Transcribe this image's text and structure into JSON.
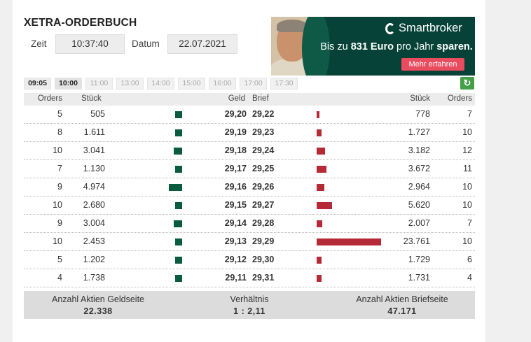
{
  "header": {
    "title": "XETRA-ORDERBUCH"
  },
  "fields": {
    "time_label": "Zeit",
    "time_value": "10:37:40",
    "date_label": "Datum",
    "date_value": "22.07.2021"
  },
  "ad": {
    "brand": "Smartbroker",
    "headline_pre": "Bis zu ",
    "headline_bold": "831 Euro",
    "headline_mid": " pro Jahr ",
    "headline_end": "sparen.",
    "cta": "Mehr erfahren",
    "colors": {
      "background": "#064237",
      "cta": "#e94b5f"
    }
  },
  "time_buttons": [
    {
      "label": "09:05",
      "available": true
    },
    {
      "label": "10:00",
      "available": true
    },
    {
      "label": "11:00",
      "available": false
    },
    {
      "label": "13:00",
      "available": false
    },
    {
      "label": "14:00",
      "available": false
    },
    {
      "label": "15:00",
      "available": false
    },
    {
      "label": "16:00",
      "available": false
    },
    {
      "label": "17:00",
      "available": false
    },
    {
      "label": "17:30",
      "available": false
    }
  ],
  "table": {
    "headers": {
      "orders_bid": "Orders",
      "qty_bid": "Stück",
      "geld": "Geld",
      "brief": "Brief",
      "qty_ask": "Stück",
      "orders_ask": "Orders"
    },
    "rows": [
      {
        "orders_bid": "5",
        "qty_bid": "505",
        "geld": "29,20",
        "brief": "29,22",
        "qty_ask": "778",
        "orders_ask": "7"
      },
      {
        "orders_bid": "8",
        "qty_bid": "1.611",
        "geld": "29,19",
        "brief": "29,23",
        "qty_ask": "1.727",
        "orders_ask": "10"
      },
      {
        "orders_bid": "10",
        "qty_bid": "3.041",
        "geld": "29,18",
        "brief": "29,24",
        "qty_ask": "3.182",
        "orders_ask": "12"
      },
      {
        "orders_bid": "7",
        "qty_bid": "1.130",
        "geld": "29,17",
        "brief": "29,25",
        "qty_ask": "3.672",
        "orders_ask": "11"
      },
      {
        "orders_bid": "9",
        "qty_bid": "4.974",
        "geld": "29,16",
        "brief": "29,26",
        "qty_ask": "2.964",
        "orders_ask": "10"
      },
      {
        "orders_bid": "10",
        "qty_bid": "2.680",
        "geld": "29,15",
        "brief": "29,27",
        "qty_ask": "5.620",
        "orders_ask": "10"
      },
      {
        "orders_bid": "9",
        "qty_bid": "3.004",
        "geld": "29,14",
        "brief": "29,28",
        "qty_ask": "2.007",
        "orders_ask": "7"
      },
      {
        "orders_bid": "10",
        "qty_bid": "2.453",
        "geld": "29,13",
        "brief": "29,29",
        "qty_ask": "23.761",
        "orders_ask": "10"
      },
      {
        "orders_bid": "5",
        "qty_bid": "1.202",
        "geld": "29,12",
        "brief": "29,30",
        "qty_ask": "1.729",
        "orders_ask": "6"
      },
      {
        "orders_bid": "4",
        "qty_bid": "1.738",
        "geld": "29,11",
        "brief": "29,31",
        "qty_ask": "1.731",
        "orders_ask": "4"
      }
    ],
    "colors": {
      "bid_bar": "#0a5c3e",
      "ask_bar": "#b52a37"
    }
  },
  "summary": {
    "bid_label": "Anzahl Aktien Geldseite",
    "bid_value": "22.338",
    "ratio_label": "Verhältnis",
    "ratio_value": "1 : 2,11",
    "ask_label": "Anzahl Aktien Briefseite",
    "ask_value": "47.171"
  }
}
